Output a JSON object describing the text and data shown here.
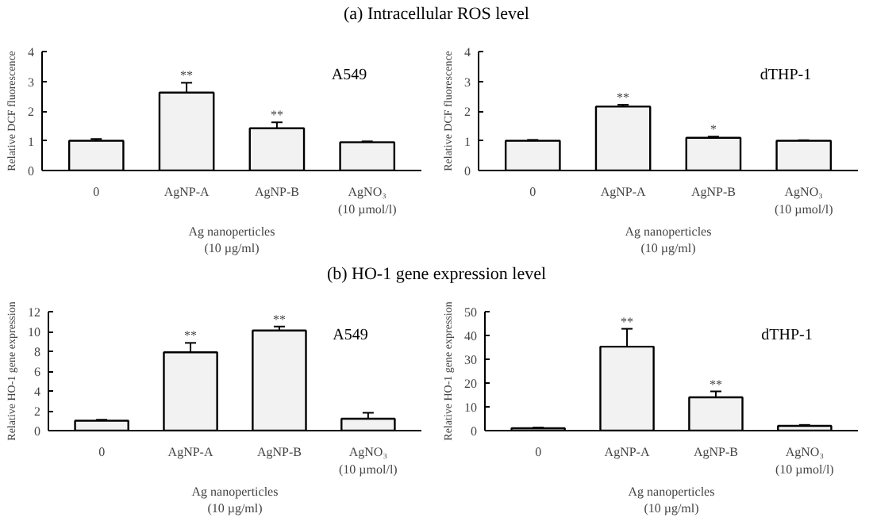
{
  "chart_data": [
    {
      "type": "bar",
      "title": "(a) Intracellular ROS level",
      "ylabel": "Relative DCF fluorescence",
      "xlabel": "Ag nanoperticles\n(10 µg/ml)",
      "categories": [
        "0",
        "AgNP-A",
        "AgNP-B",
        "AgNO₃\n(10 µmol/l)"
      ],
      "values": [
        1.0,
        2.62,
        1.42,
        0.95
      ],
      "errors": [
        0.06,
        0.33,
        0.2,
        0.03
      ],
      "value_labels": [
        null,
        "**",
        "**",
        null
      ],
      "color": "#f2f2f2",
      "ylim": [
        0,
        4
      ],
      "yticks": [
        0,
        1,
        2,
        3,
        4
      ],
      "grid": false,
      "annotations": [
        "A549"
      ]
    },
    {
      "type": "bar",
      "ylabel": "Relative DCF fluorescence",
      "xlabel": "Ag nanoperticles\n(10 µg/ml)",
      "categories": [
        "0",
        "AgNP-A",
        "AgNP-B",
        "AgNO₃\n(10 µmol/l)"
      ],
      "values": [
        1.0,
        2.15,
        1.1,
        1.0
      ],
      "errors": [
        0.03,
        0.06,
        0.04,
        0.02
      ],
      "value_labels": [
        null,
        "**",
        "*",
        null
      ],
      "color": "#f2f2f2",
      "ylim": [
        0,
        4
      ],
      "yticks": [
        0,
        1,
        2,
        3,
        4
      ],
      "grid": false,
      "annotations": [
        "dTHP-1"
      ]
    },
    {
      "type": "bar",
      "title": "(b) HO-1 gene expression level",
      "ylabel": "Relative HO-1 gene expression",
      "xlabel": "Ag nanoperticles\n(10 µg/ml)",
      "categories": [
        "0",
        "AgNP-A",
        "AgNP-B",
        "AgNO₃\n(10 µmol/l)"
      ],
      "values": [
        1.0,
        7.9,
        10.1,
        1.2
      ],
      "errors": [
        0.1,
        0.95,
        0.4,
        0.6
      ],
      "value_labels": [
        null,
        "**",
        "**",
        null
      ],
      "color": "#f2f2f2",
      "ylim": [
        0,
        12
      ],
      "yticks": [
        0,
        2,
        4,
        6,
        8,
        10,
        12
      ],
      "grid": false,
      "annotations": [
        "A549"
      ]
    },
    {
      "type": "bar",
      "ylabel": "Relative HO-1 gene expression",
      "xlabel": "Ag nanoperticles\n(10 µg/ml)",
      "categories": [
        "0",
        "AgNP-A",
        "AgNP-B",
        "AgNO₃\n(10 µmol/l)"
      ],
      "values": [
        1.0,
        35.3,
        14.0,
        2.0
      ],
      "errors": [
        0.3,
        7.5,
        2.5,
        0.4
      ],
      "value_labels": [
        null,
        "**",
        "**",
        null
      ],
      "color": "#f2f2f2",
      "ylim": [
        0,
        50
      ],
      "yticks": [
        0,
        10,
        20,
        30,
        40,
        50
      ],
      "grid": false,
      "annotations": [
        "dTHP-1"
      ]
    }
  ]
}
